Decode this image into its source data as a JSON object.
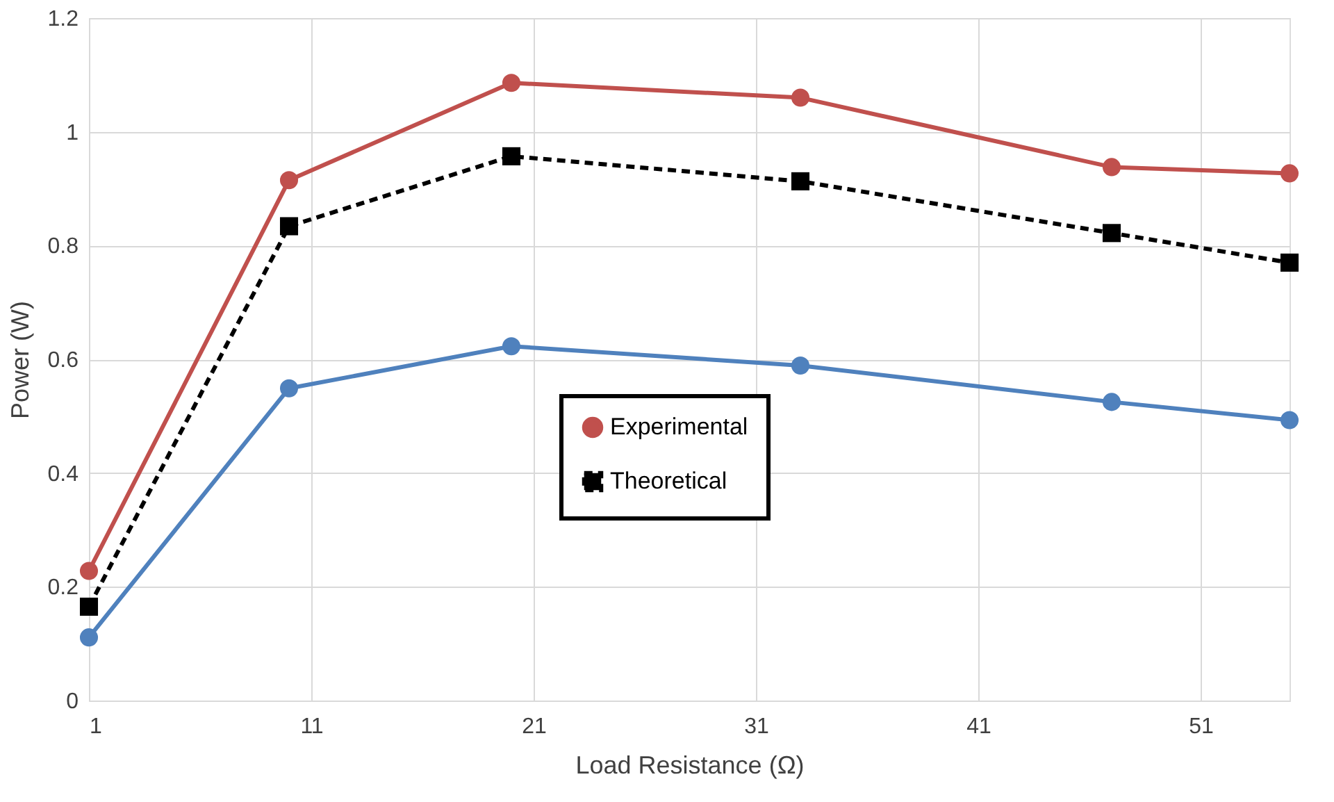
{
  "chart_data": {
    "type": "line",
    "xlabel": "Load Resistance (Ω)",
    "ylabel": "Power (W)",
    "x": [
      1,
      10,
      20,
      33,
      47,
      55
    ],
    "xlim": [
      1,
      55
    ],
    "xticks": [
      1,
      11,
      21,
      31,
      41,
      51
    ],
    "ylim": [
      0,
      1.2
    ],
    "yticks": [
      0,
      0.2,
      0.4,
      0.6,
      0.8,
      1,
      1.2
    ],
    "grid": true,
    "legend": "bottom",
    "series": [
      {
        "color": "#4f81bd",
        "marker": "circle",
        "line_style": "solid",
        "values": [
          0.111,
          0.549,
          0.623,
          0.589,
          0.525,
          0.493
        ]
      },
      {
        "name": "Experimental",
        "color": "#c0504d",
        "marker": "circle",
        "line_style": "solid",
        "values": [
          0.228,
          0.915,
          1.086,
          1.06,
          0.938,
          0.927
        ]
      },
      {
        "name": "Theoretical",
        "color": "#000000",
        "marker": "square",
        "line_style": "dashed",
        "values": [
          0.165,
          0.834,
          0.957,
          0.913,
          0.822,
          0.77
        ]
      }
    ]
  }
}
